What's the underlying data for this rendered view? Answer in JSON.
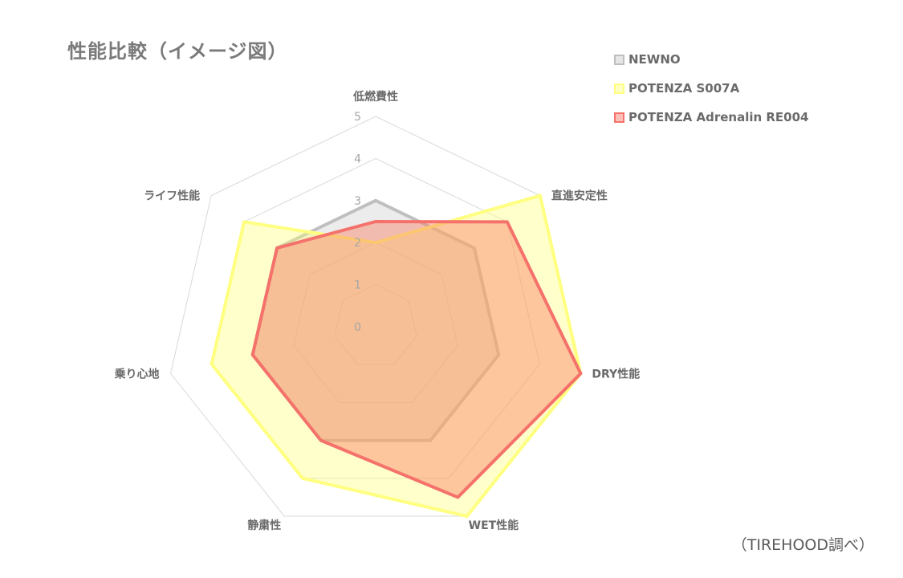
{
  "chart_data": {
    "type": "radar",
    "title": "性能比較（イメージ図）",
    "axes": [
      "低燃費性",
      "直進安定性",
      "DRY性能",
      "WET性能",
      "静粛性",
      "乗り心地",
      "ライフ性能"
    ],
    "rlim": [
      0,
      5
    ],
    "ticks": [
      "0",
      "1",
      "2",
      "3",
      "4",
      "5"
    ],
    "legend_position": "top-right",
    "series": [
      {
        "name": "NEWNO",
        "color": "#bfbfbf",
        "fill": "rgba(200,200,200,0.35)",
        "values": [
          3.0,
          3.0,
          3.0,
          3.0,
          3.0,
          3.0,
          3.0
        ]
      },
      {
        "name": "POTENZA S007A",
        "color": "#ffff80",
        "fill": "rgba(255,255,120,0.38)",
        "values": [
          2.0,
          5.0,
          5.0,
          5.0,
          4.0,
          4.0,
          4.0
        ]
      },
      {
        "name": "POTENZA Adrenalin RE004",
        "color": "#f4726b",
        "fill": "rgba(250,120,90,0.42)",
        "values": [
          2.5,
          4.0,
          5.0,
          4.5,
          3.0,
          3.0,
          3.0
        ]
      }
    ]
  },
  "source_note": "（TIREHOOD調べ）"
}
